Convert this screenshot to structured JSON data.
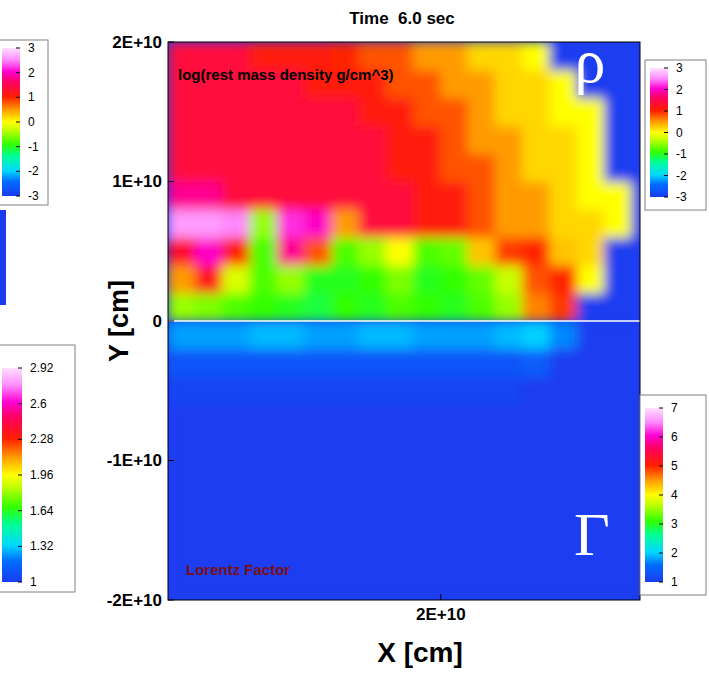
{
  "chart_data": {
    "type": "heatmap",
    "title": "Time  6.0 sec",
    "xlabel": "X [cm]",
    "ylabel": "Y [cm]",
    "xlim": [
      0,
      34600000000.0
    ],
    "ylim": [
      -20000000000.0,
      20000000000.0
    ],
    "xticks": [
      {
        "value": 20000000000.0,
        "label": "2E+10"
      }
    ],
    "yticks": [
      {
        "value": -20000000000.0,
        "label": "-2E+10"
      },
      {
        "value": -10000000000.0,
        "label": "-1E+10"
      },
      0,
      {
        "value": 10000000000.0,
        "label": "1E+10"
      },
      {
        "value": 20000000000.0,
        "label": "2E+10"
      }
    ],
    "fields": [
      {
        "label": "log(rest mass density g/cm^3)",
        "symbol": "ρ",
        "x_edges": [
          0,
          2000000000.0,
          4000000000.0,
          6000000000.0,
          8000000000.0,
          10000000000.0,
          12000000000.0,
          14000000000.0,
          16000000000.0,
          18000000000.0,
          20000000000.0,
          22000000000.0,
          24000000000.0,
          26000000000.0,
          28000000000.0,
          30000000000.0,
          32000000000.0,
          34000000000.0,
          36000000000.0
        ],
        "y_edges": [
          0,
          2000000000.0,
          4000000000.0,
          6000000000.0,
          8000000000.0,
          10000000000.0,
          12000000000.0,
          14000000000.0,
          16000000000.0,
          18000000000.0,
          20000000000.0
        ],
        "cells": [
          [
            -0.5,
            -0.6,
            -0.8,
            -0.9,
            -1.0,
            -1.1,
            -0.9,
            -1.0,
            -0.8,
            -0.9,
            -1.0,
            -0.8,
            -0.5,
            0.6,
            0.9,
            -3,
            -3,
            -3
          ],
          [
            0.5,
            1.2,
            -0.2,
            -0.8,
            -0.5,
            -1.0,
            -1.0,
            -0.9,
            -0.6,
            -1.0,
            -0.9,
            -0.7,
            -0.3,
            0.8,
            1.0,
            0.0,
            -3,
            -3
          ],
          [
            1.3,
            2.0,
            1.0,
            -0.8,
            1.8,
            0.8,
            -0.8,
            -0.5,
            0.0,
            -0.8,
            -0.7,
            0.3,
            0.9,
            1.0,
            0.3,
            0.2,
            -3,
            -3
          ],
          [
            2.6,
            2.6,
            2.5,
            -0.5,
            2.2,
            2.0,
            0.5,
            1.4,
            1.4,
            1.1,
            1.1,
            0.8,
            0.5,
            0.5,
            0.2,
            0.2,
            0.0,
            -3
          ],
          [
            1.8,
            1.8,
            1.4,
            1.4,
            1.4,
            1.4,
            1.4,
            1.4,
            1.4,
            1.1,
            1.1,
            0.8,
            0.5,
            0.5,
            0.2,
            0.0,
            0.0,
            -3
          ],
          [
            1.4,
            1.4,
            1.4,
            1.4,
            1.4,
            1.4,
            1.4,
            1.4,
            1.1,
            1.1,
            0.8,
            0.8,
            0.5,
            0.2,
            0.2,
            0.0,
            -3,
            -3
          ],
          [
            1.4,
            1.4,
            1.4,
            1.4,
            1.4,
            1.4,
            1.4,
            1.4,
            1.1,
            1.1,
            0.8,
            0.5,
            0.5,
            0.2,
            0.2,
            0.0,
            -3,
            -3
          ],
          [
            1.4,
            1.4,
            1.4,
            1.4,
            1.4,
            1.4,
            1.4,
            1.1,
            1.1,
            0.8,
            0.8,
            0.5,
            0.2,
            0.2,
            0.0,
            0.0,
            -3,
            -3
          ],
          [
            1.4,
            1.4,
            1.4,
            1.4,
            1.4,
            1.1,
            1.1,
            1.1,
            0.8,
            0.8,
            0.5,
            0.5,
            0.2,
            0.2,
            0.0,
            -3,
            -3,
            -3
          ],
          [
            1.4,
            1.4,
            1.4,
            1.1,
            1.1,
            1.1,
            1.0,
            0.8,
            0.8,
            0.5,
            0.5,
            0.2,
            0.2,
            0.0,
            -3,
            -3,
            -3,
            -3
          ]
        ],
        "colorbar": {
          "range": [
            -3,
            3
          ],
          "ticks": [
            3,
            2,
            1,
            0,
            -1,
            -2,
            -3
          ]
        }
      },
      {
        "label": "Lorentz Factor",
        "symbol": "Γ",
        "x_edges": [
          0,
          2000000000.0,
          4000000000.0,
          6000000000.0,
          8000000000.0,
          10000000000.0,
          12000000000.0,
          14000000000.0,
          16000000000.0,
          18000000000.0,
          20000000000.0,
          22000000000.0,
          24000000000.0,
          26000000000.0,
          28000000000.0,
          30000000000.0,
          32000000000.0,
          34000000000.0,
          36000000000.0
        ],
        "y_edges": [
          -20000000000.0,
          -18000000000.0,
          -16000000000.0,
          -14000000000.0,
          -12000000000.0,
          -10000000000.0,
          -8000000000.0,
          -6000000000.0,
          -4000000000.0,
          -2000000000.0,
          0
        ],
        "cells": [
          [
            1,
            1,
            1,
            1,
            1,
            1,
            1,
            1,
            1,
            1,
            1,
            1,
            1,
            1,
            1,
            1,
            1,
            1
          ],
          [
            1,
            1,
            1,
            1,
            1,
            1,
            1,
            1,
            1,
            1,
            1,
            1,
            1,
            1,
            1,
            1,
            1,
            1
          ],
          [
            1,
            1,
            1,
            1,
            1,
            1,
            1,
            1,
            1,
            1,
            1,
            1,
            1,
            1,
            1,
            1,
            1,
            1
          ],
          [
            1,
            1,
            1,
            1,
            1,
            1,
            1,
            1,
            1,
            1,
            1,
            1,
            1,
            1,
            1,
            1,
            1,
            1
          ],
          [
            1,
            1,
            1,
            1,
            1,
            1,
            1,
            1,
            1,
            1,
            1,
            1,
            1,
            1,
            1,
            1,
            1,
            1
          ],
          [
            1,
            1,
            1,
            1,
            1,
            1,
            1,
            1,
            1,
            1,
            1,
            1,
            1,
            1,
            1,
            1,
            1,
            1
          ],
          [
            1,
            1,
            1,
            1,
            1,
            1,
            1,
            1,
            1,
            1,
            1,
            1,
            1,
            1,
            1,
            1,
            1,
            1
          ],
          [
            1.1,
            1.1,
            1.1,
            1.1,
            1.1,
            1.1,
            1.1,
            1.1,
            1.1,
            1.1,
            1.1,
            1.1,
            1.1,
            1,
            1,
            1,
            1,
            1
          ],
          [
            1.3,
            1.3,
            1.3,
            1.3,
            1.3,
            1.3,
            1.3,
            1.3,
            1.3,
            1.3,
            1.3,
            1.3,
            1.3,
            1.4,
            1,
            1,
            1,
            1
          ],
          [
            1.8,
            1.8,
            1.8,
            1.9,
            1.9,
            1.8,
            1.8,
            1.9,
            1.9,
            1.8,
            1.8,
            1.8,
            1.9,
            2.0,
            1.7,
            1,
            1,
            1
          ]
        ],
        "colorbar": {
          "range": [
            1,
            7
          ],
          "ticks": [
            7,
            6,
            5,
            4,
            3,
            2,
            1
          ]
        }
      }
    ],
    "other_colorbars": [
      {
        "range": [
          -3,
          3
        ],
        "ticks": [
          3,
          2,
          1,
          0,
          -1,
          -2,
          -3
        ]
      },
      {
        "range": [
          1,
          2.92
        ],
        "ticks": [
          2.92,
          2.6,
          2.28,
          1.96,
          1.64,
          1.32,
          1
        ]
      }
    ]
  }
}
